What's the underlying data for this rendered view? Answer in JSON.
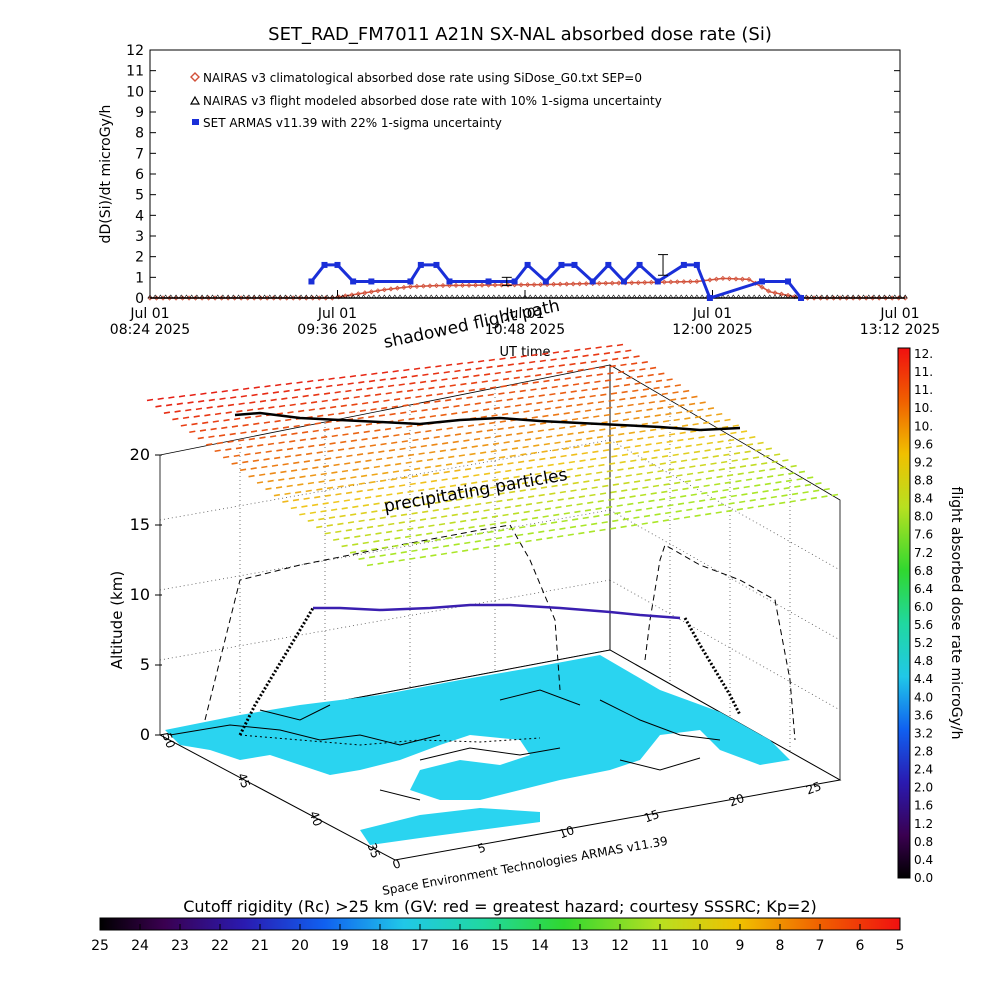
{
  "chart_data": [
    {
      "type": "line",
      "title": "SET_RAD_FM7011  A21N SX-NAL absorbed dose rate (Si)",
      "ylabel": "dD(Si)/dt microGy/h",
      "ylim": [
        0,
        12
      ],
      "yticks": [
        "0",
        "1",
        "2",
        "3",
        "4",
        "5",
        "6",
        "7",
        "8",
        "9",
        "10",
        "11",
        "12"
      ],
      "xticks": [
        {
          "top": "Jul 01",
          "bottom": "08:24 2025"
        },
        {
          "top": "Jul 01",
          "bottom": "09:36 2025"
        },
        {
          "top": "Jul 01",
          "bottom": "10:48 2025"
        },
        {
          "top": "Jul 01",
          "bottom": "12:00 2025"
        },
        {
          "top": "Jul 01",
          "bottom": "13:12 2025"
        }
      ],
      "xlabel": "UT time",
      "legend": [
        {
          "label": "NAIRAS v3 climatological absorbed dose rate using SiDose_G0.txt SEP=0",
          "color": "#d2513a",
          "marker": "diamond"
        },
        {
          "label": "NAIRAS v3 flight modeled absorbed dose rate with 10% 1-sigma uncertainty",
          "color": "#000000",
          "marker": "triangle"
        },
        {
          "label": "SET ARMAS v11.39 with 22% 1-sigma uncertainty",
          "color": "#1a2fd8",
          "marker": "square"
        }
      ],
      "series": [
        {
          "name": "NAIRAS v3 climatological absorbed dose rate using SiDose_G0.txt SEP=0",
          "color": "#d2513a",
          "x_min": [
            0,
            40,
            70,
            80,
            90,
            100,
            110,
            150,
            170,
            190,
            210,
            220,
            230,
            238,
            250,
            265,
            290
          ],
          "values": [
            0,
            0,
            0,
            0.2,
            0.4,
            0.55,
            0.6,
            0.65,
            0.7,
            0.75,
            0.8,
            0.95,
            0.9,
            0.3,
            0,
            0,
            0
          ]
        },
        {
          "name": "NAIRAS v3 flight modeled absorbed dose rate with 10% 1-sigma uncertainty",
          "color": "#000000",
          "x_min": [
            0,
            290
          ],
          "values": [
            0,
            0
          ]
        },
        {
          "name": "SET ARMAS v11.39 with 22% 1-sigma uncertainty",
          "color": "#1a2fd8",
          "x_min": [
            62,
            67,
            72,
            78,
            85,
            100,
            104,
            110,
            115,
            130,
            140,
            145,
            152,
            158,
            163,
            170,
            176,
            182,
            188,
            195,
            205,
            210,
            215,
            235,
            245,
            250
          ],
          "values": [
            0.8,
            1.6,
            1.6,
            0.8,
            0.8,
            0.8,
            1.6,
            1.6,
            0.8,
            0.8,
            0.8,
            1.6,
            0.8,
            1.6,
            1.6,
            0.8,
            1.6,
            0.8,
            1.6,
            0.8,
            1.6,
            1.6,
            0,
            0.8,
            0.8,
            0
          ]
        }
      ],
      "error_bars": [
        {
          "x_min": 137,
          "low": 0.6,
          "high": 1.0
        },
        {
          "x_min": 197,
          "low": 1.1,
          "high": 2.1
        }
      ]
    },
    {
      "type": "scatter",
      "subtype": "3d-surface",
      "zlabel": "Altitude (km)",
      "zticks": [
        "0",
        "5",
        "10",
        "15",
        "20"
      ],
      "lat_ticks": [
        "50",
        "45",
        "40",
        "35"
      ],
      "lon_ticks": [
        "0",
        "5",
        "10",
        "15",
        "20",
        "25"
      ],
      "annotations": [
        "shadowed flight path",
        "precipitating particles",
        "Space Environment Technologies ARMAS v11.39"
      ],
      "colorbar": {
        "label": "flight absorbed dose rate microGy/h",
        "ticks": [
          "12.",
          "11.",
          "11.",
          "10.",
          "10.",
          "9.6",
          "9.2",
          "8.8",
          "8.4",
          "8.0",
          "7.6",
          "7.2",
          "6.8",
          "6.4",
          "6.0",
          "5.6",
          "5.2",
          "4.8",
          "4.4",
          "4.0",
          "3.6",
          "3.2",
          "2.8",
          "2.4",
          "2.0",
          "1.6",
          "1.2",
          "0.8",
          "0.4",
          "0.0"
        ]
      }
    },
    {
      "type": "heatmap",
      "subtype": "colorbar",
      "title": "Cutoff rigidity (Rc) >25 km (GV: red = greatest hazard; courtesy SSSRC; Kp=2)",
      "ticks": [
        "25",
        "24",
        "23",
        "22",
        "21",
        "20",
        "19",
        "18",
        "17",
        "16",
        "15",
        "14",
        "13",
        "12",
        "11",
        "10",
        "9",
        "8",
        "7",
        "6",
        "5"
      ]
    }
  ]
}
